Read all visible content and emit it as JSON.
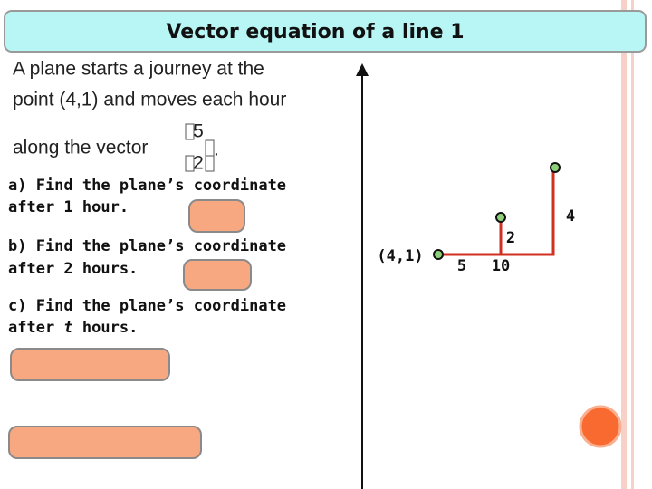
{
  "header": {
    "title": "Vector equation of a line 1"
  },
  "intro": {
    "lines": [
      "A plane starts a journey at the",
      "point (4,1) and moves each hour",
      "along the vector"
    ],
    "vector": {
      "top": "5",
      "bottom": "2"
    },
    "end": "."
  },
  "questions": [
    {
      "lines": [
        "a) Find the plane’s coordinate",
        "after 1 hour."
      ]
    },
    {
      "lines": [
        "b) Find the plane’s coordinate",
        "after 2 hours."
      ]
    },
    {
      "lines": [
        "c) Find the plane’s coordinate"
      ],
      "last_line": {
        "before": "after ",
        "variable": "t",
        "after": " hours."
      }
    }
  ],
  "diagram": {
    "start_label": "(4,1)",
    "labels": [
      "5",
      "10",
      "2",
      "4"
    ]
  }
}
